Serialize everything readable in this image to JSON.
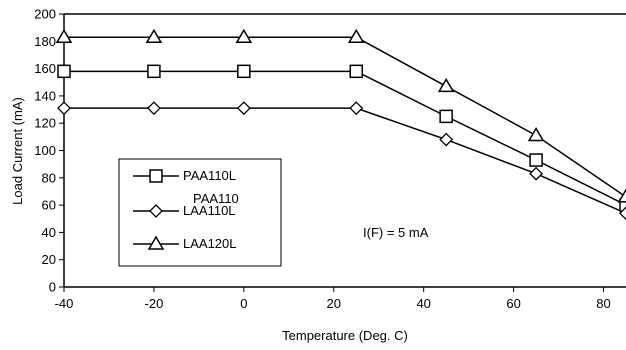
{
  "chart_data": {
    "type": "line",
    "title": "",
    "xlabel": "Temperature (Deg. C)",
    "ylabel": "Load Current (mA)",
    "xlim": [
      -40,
      85
    ],
    "ylim": [
      0,
      200
    ],
    "x_ticks": [
      -40,
      -20,
      0,
      20,
      40,
      60,
      80
    ],
    "y_ticks": [
      0,
      20,
      40,
      60,
      80,
      100,
      120,
      140,
      160,
      180,
      200
    ],
    "grid": false,
    "legend_position": "lower-left",
    "series": [
      {
        "name": "PAA110L",
        "marker": "square",
        "x": [
          -40,
          -20,
          0,
          25,
          45,
          65,
          85
        ],
        "y": [
          158,
          158,
          158,
          158,
          125,
          93,
          60
        ]
      },
      {
        "name": "PAA110\nLAA110L",
        "marker": "diamond",
        "x": [
          -40,
          -20,
          0,
          25,
          45,
          65,
          85
        ],
        "y": [
          131,
          131,
          131,
          131,
          108,
          83,
          54
        ]
      },
      {
        "name": "LAA120L",
        "marker": "triangle",
        "x": [
          -40,
          -20,
          0,
          25,
          45,
          65,
          85
        ],
        "y": [
          183,
          183,
          183,
          183,
          147,
          111,
          66
        ]
      }
    ],
    "legend_labels": {
      "s0": "PAA110L",
      "s1_line1": "PAA110",
      "s1_line2": "LAA110L",
      "s2": "LAA120L"
    },
    "annotation": {
      "text": "I(F) = 5 mA",
      "x": 47,
      "y": 42
    }
  }
}
